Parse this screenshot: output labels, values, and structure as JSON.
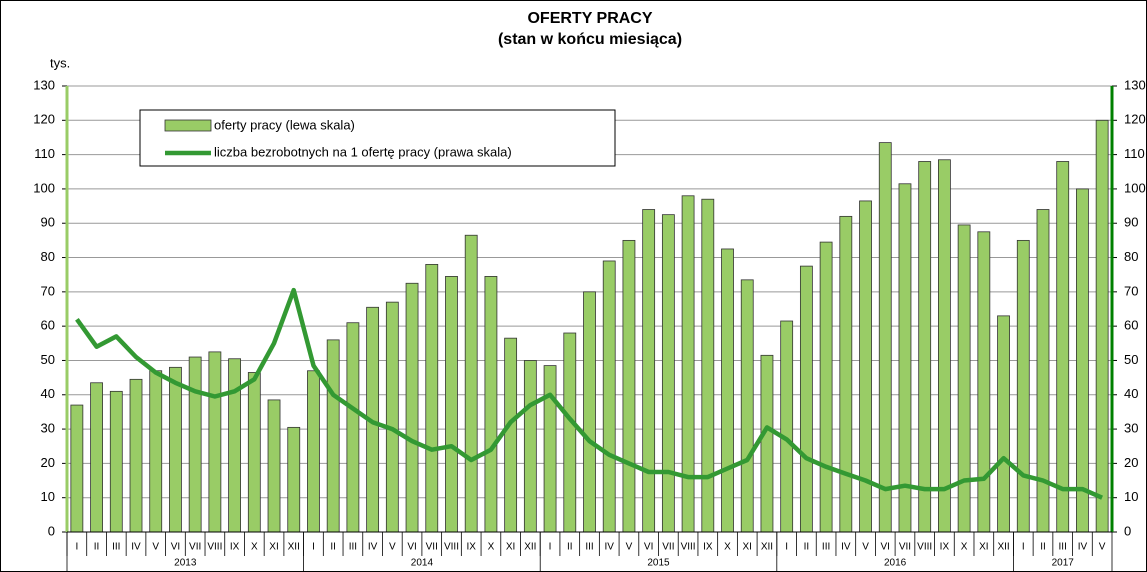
{
  "chart_data": {
    "type": "bar_line",
    "title": "OFERTY PRACY",
    "subtitle": "(stan w końcu miesiąca)",
    "y_unit_label": "tys.",
    "categories": [
      "I",
      "II",
      "III",
      "IV",
      "V",
      "VI",
      "VII",
      "VIII",
      "IX",
      "X",
      "XI",
      "XII",
      "I",
      "II",
      "III",
      "IV",
      "V",
      "VI",
      "VII",
      "VIII",
      "IX",
      "X",
      "XI",
      "XII",
      "I",
      "II",
      "III",
      "IV",
      "V",
      "VI",
      "VII",
      "VIII",
      "IX",
      "X",
      "XI",
      "XII",
      "I",
      "II",
      "III",
      "IV",
      "V",
      "VI",
      "VII",
      "VIII",
      "IX",
      "X",
      "XI",
      "XII",
      "I",
      "II",
      "III",
      "IV",
      "V"
    ],
    "years": [
      "2013",
      "2014",
      "2015",
      "2016",
      "2017"
    ],
    "series": [
      {
        "name": "oferty pracy (lewa skala)",
        "type": "bar",
        "color": "#99cc66",
        "values": [
          37,
          43.5,
          41,
          44.5,
          47,
          48,
          51,
          52.5,
          50.5,
          46.5,
          38.5,
          30.5,
          47,
          56,
          61,
          65.5,
          67,
          72.5,
          78,
          74.5,
          86.5,
          74.5,
          56.5,
          50,
          48.5,
          58,
          70,
          79,
          85,
          94,
          92.5,
          98,
          97,
          82.5,
          73.5,
          51.5,
          61.5,
          77.5,
          84.5,
          92,
          96.5,
          113.5,
          101.5,
          108,
          108.5,
          89.5,
          87.5,
          63,
          85,
          94,
          108,
          100,
          120
        ]
      },
      {
        "name": "liczba bezrobotnych na 1 ofertę pracy (prawa skala)",
        "type": "line",
        "axis": "y2",
        "color": "#339933",
        "values": [
          62,
          54,
          57,
          51,
          46.5,
          43.5,
          41,
          39.5,
          41,
          44.5,
          55,
          70.5,
          48.5,
          40,
          36,
          32,
          30,
          26.5,
          24,
          25,
          21,
          24,
          32,
          37,
          40,
          33,
          26.5,
          22.5,
          20,
          17.5,
          17.5,
          16,
          16,
          18.5,
          21,
          30.5,
          27,
          21.5,
          19,
          17,
          15,
          12.5,
          13.5,
          12.5,
          12.5,
          15,
          15.5,
          21.5,
          16.5,
          15,
          12.5,
          12.5,
          10
        ]
      }
    ],
    "ylim": [
      0,
      130
    ],
    "yticks": [
      0,
      10,
      20,
      30,
      40,
      50,
      60,
      70,
      80,
      90,
      100,
      110,
      120,
      130
    ],
    "y2lim": [
      0,
      130
    ],
    "y2ticks": [
      0,
      10,
      20,
      30,
      40,
      50,
      60,
      70,
      80,
      90,
      100,
      110,
      120,
      130
    ],
    "grid": true,
    "legend": "upper left"
  }
}
